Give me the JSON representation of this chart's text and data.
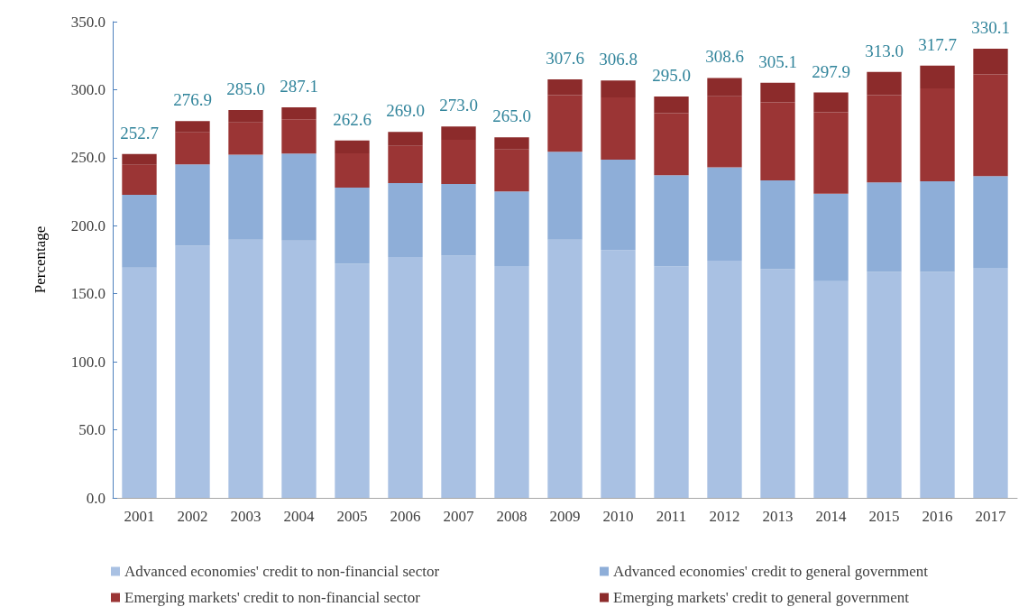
{
  "chart_data": {
    "type": "bar",
    "stacked": true,
    "ylabel": "Percentage",
    "categories": [
      "2001",
      "2002",
      "2003",
      "2004",
      "2005",
      "2006",
      "2007",
      "2008",
      "2009",
      "2010",
      "2011",
      "2012",
      "2013",
      "2014",
      "2015",
      "2016",
      "2017"
    ],
    "series": [
      {
        "name": "Advanced economies' credit to non-financial sector",
        "color": "#a9c1e3",
        "values": [
          169.2,
          185.4,
          189.8,
          189.1,
          172.1,
          177.0,
          178.1,
          170.4,
          189.7,
          182.2,
          170.2,
          174.3,
          168.0,
          159.3,
          166.1,
          166.1,
          169.1
        ]
      },
      {
        "name": "Advanced economies' credit to general government",
        "color": "#8eaed8",
        "values": [
          53.5,
          59.7,
          62.4,
          63.9,
          55.9,
          54.3,
          52.6,
          54.8,
          64.7,
          66.4,
          67.0,
          68.6,
          65.3,
          64.2,
          65.8,
          66.6,
          67.4
        ]
      },
      {
        "name": "Emerging markets' credit to non-financial sector",
        "color": "#9b3535",
        "values": [
          22.1,
          23.6,
          23.8,
          25.2,
          25.2,
          27.4,
          32.5,
          30.9,
          41.6,
          45.8,
          45.5,
          52.3,
          57.4,
          59.9,
          64.1,
          68.3,
          74.8
        ]
      },
      {
        "name": "Emerging markets' credit to general government",
        "color": "#8c2b2b",
        "values": [
          7.9,
          8.2,
          9.0,
          8.9,
          9.4,
          10.3,
          9.8,
          8.9,
          11.6,
          12.4,
          12.3,
          13.4,
          14.4,
          14.5,
          17.0,
          16.7,
          18.8
        ]
      }
    ],
    "totals": [
      "252.7",
      "276.9",
      "285.0",
      "287.1",
      "262.6",
      "269.0",
      "273.0",
      "265.0",
      "307.6",
      "306.8",
      "295.0",
      "308.6",
      "305.1",
      "297.9",
      "313.0",
      "317.7",
      "330.1"
    ],
    "ylim": [
      0,
      350
    ],
    "yticks": [
      {
        "value": 0,
        "label": "0.0"
      },
      {
        "value": 50,
        "label": "50.0"
      },
      {
        "value": 100,
        "label": "100.0"
      },
      {
        "value": 150,
        "label": "150.0"
      },
      {
        "value": 200,
        "label": "200.0"
      },
      {
        "value": 250,
        "label": "250.0"
      },
      {
        "value": 300,
        "label": "300.0"
      },
      {
        "value": 350,
        "label": "350.0"
      }
    ],
    "grid": false,
    "legend": "bottom"
  }
}
